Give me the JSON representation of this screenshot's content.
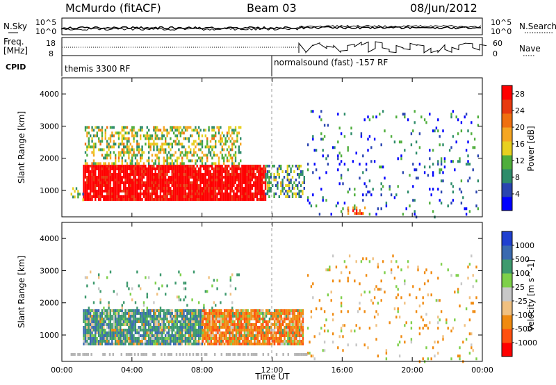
{
  "header": {
    "station": "McMurdo (fitACF)",
    "beam": "Beam 03",
    "date": "08/Jun/2012"
  },
  "side_labels": {
    "nsky": "N.Sky",
    "freq": "Freq.",
    "mhz": "[MHz]",
    "cpid": "CPID",
    "nsearch": "N.Search",
    "nave": "Nave"
  },
  "cpid_labels": {
    "first": "themis 3300 RF",
    "second": "normalsound (fast) -157 RF"
  },
  "strip_ticks": {
    "nsky_left": [
      "10^5",
      "10^0"
    ],
    "freq_left": [
      "18",
      "8"
    ],
    "nsearch_right": [
      "10^5",
      "10^0"
    ],
    "nave_right": [
      "60",
      "0"
    ]
  },
  "colors": {
    "power": [
      "#0000ff",
      "#2a45b0",
      "#2e8c6a",
      "#4fae3c",
      "#e8d020",
      "#f5a623",
      "#f07010",
      "#e83a10",
      "#ff0000"
    ],
    "velocity": [
      "#ff0000",
      "#ff5010",
      "#f08a10",
      "#f0c080",
      "#c8c8c8",
      "#7ed04a",
      "#3e9a6e",
      "#3a6ab0",
      "#2040d0"
    ],
    "ground_scatter": "#b4b4b4",
    "frame": "#000000"
  },
  "chart_data": [
    {
      "type": "heatmap",
      "title": "Power",
      "xlabel": "",
      "ylabel": "Slant Range [km]",
      "x_ticks": [
        "00:00",
        "04:00",
        "08:00",
        "12:00",
        "16:00",
        "20:00",
        "00:00"
      ],
      "xlim_hours": [
        0,
        24
      ],
      "ylim": [
        180,
        4500
      ],
      "y_ticks": [
        1000,
        2000,
        3000,
        4000
      ],
      "colorbar": {
        "label": "Power [dB]",
        "ticks": [
          4,
          8,
          12,
          16,
          20,
          24,
          28
        ],
        "range": [
          0,
          30
        ]
      },
      "regions": [
        {
          "start_h": 1.2,
          "end_h": 11.6,
          "min_km": 700,
          "max_km": 1800,
          "value": 30
        },
        {
          "start_h": 0.5,
          "end_h": 1.2,
          "min_km": 700,
          "max_km": 1100,
          "value": 10
        },
        {
          "start_h": 11.6,
          "end_h": 13.8,
          "min_km": 800,
          "max_km": 1800,
          "value": 10
        },
        {
          "start_h": 1.3,
          "end_h": 10.2,
          "min_km": 1800,
          "max_km": 3000,
          "value": 14
        },
        {
          "start_h": 14.0,
          "end_h": 23.8,
          "min_km": 200,
          "max_km": 3500,
          "value": 6
        },
        {
          "start_h": 16.3,
          "end_h": 17.5,
          "min_km": 250,
          "max_km": 500,
          "value": 24
        }
      ]
    },
    {
      "type": "heatmap",
      "title": "Velocity",
      "xlabel": "Time UT",
      "ylabel": "Slant Range [km]",
      "x_ticks": [
        "00:00",
        "04:00",
        "08:00",
        "12:00",
        "16:00",
        "20:00",
        "00:00"
      ],
      "xlim_hours": [
        0,
        24
      ],
      "ylim": [
        180,
        4500
      ],
      "y_ticks": [
        1000,
        2000,
        3000,
        4000
      ],
      "colorbar": {
        "label": "Velocity [m s^-1]",
        "ticks": [
          "1000",
          "500",
          "100",
          "25",
          "-25",
          "-100",
          "-500",
          "-1000"
        ]
      },
      "regions": [
        {
          "start_h": 1.2,
          "end_h": 8.0,
          "min_km": 700,
          "max_km": 1800,
          "value": 300
        },
        {
          "start_h": 8.0,
          "end_h": 13.8,
          "min_km": 750,
          "max_km": 1800,
          "value": -300
        },
        {
          "start_h": 1.3,
          "end_h": 10.2,
          "min_km": 1800,
          "max_km": 3000,
          "value": 100
        },
        {
          "start_h": 14.0,
          "end_h": 23.8,
          "min_km": 200,
          "max_km": 3500,
          "value": -100
        }
      ]
    }
  ]
}
